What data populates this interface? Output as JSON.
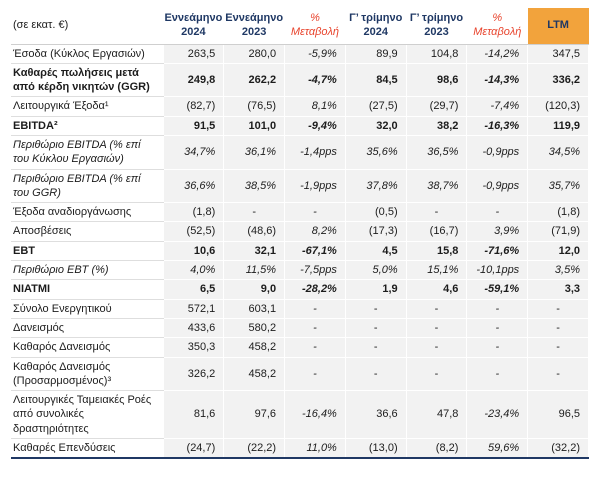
{
  "table": {
    "unit_label": "(σε εκατ. €)",
    "columns": [
      {
        "id": "nine-month-2024",
        "label": "Εννεάμηνο 2024",
        "type": "period"
      },
      {
        "id": "nine-month-2023",
        "label": "Εννεάμηνο 2023",
        "type": "period"
      },
      {
        "id": "change-nine-month",
        "label": "% Μεταβολή",
        "type": "change"
      },
      {
        "id": "q3-2024",
        "label": "Γ’ τρίμηνο 2024",
        "type": "period"
      },
      {
        "id": "q3-2023",
        "label": "Γ’ τρίμηνο 2023",
        "type": "period"
      },
      {
        "id": "change-q3",
        "label": "% Μεταβολή",
        "type": "change"
      },
      {
        "id": "ltm",
        "label": "LTM",
        "type": "ltm"
      }
    ],
    "rows": [
      {
        "label": "Έσοδα (Κύκλος Εργασιών)",
        "style": "normal",
        "values": [
          "263,5",
          "280,0",
          "-5,9%",
          "89,9",
          "104,8",
          "-14,2%",
          "347,5"
        ]
      },
      {
        "label": "Καθαρές πωλήσεις μετά από κέρδη νικητών (GGR)",
        "style": "bold",
        "values": [
          "249,8",
          "262,2",
          "-4,7%",
          "84,5",
          "98,6",
          "-14,3%",
          "336,2"
        ]
      },
      {
        "label": "Λειτουργικά Έξοδα¹",
        "style": "normal",
        "values": [
          "(82,7)",
          "(76,5)",
          "8,1%",
          "(27,5)",
          "(29,7)",
          "-7,4%",
          "(120,3)"
        ]
      },
      {
        "label": "EBITDA²",
        "style": "bold",
        "values": [
          "91,5",
          "101,0",
          "-9,4%",
          "32,0",
          "38,2",
          "-16,3%",
          "119,9"
        ]
      },
      {
        "label": "Περιθώριο EBITDA (% επί του Κύκλου Εργασιών)",
        "style": "italic",
        "values": [
          "34,7%",
          "36,1%",
          "-1,4pps",
          "35,6%",
          "36,5%",
          "-0,9pps",
          "34,5%"
        ]
      },
      {
        "label": "Περιθώριο EBITDA (% επί του GGR)",
        "style": "italic",
        "values": [
          "36,6%",
          "38,5%",
          "-1,9pps",
          "37,8%",
          "38,7%",
          "-0,9pps",
          "35,7%"
        ]
      },
      {
        "label": "Έξοδα αναδιοργάνωσης",
        "style": "normal",
        "values": [
          "(1,8)",
          "-",
          "-",
          "(0,5)",
          "-",
          "-",
          "(1,8)"
        ]
      },
      {
        "label": "Αποσβέσεις",
        "style": "normal",
        "values": [
          "(52,5)",
          "(48,6)",
          "8,2%",
          "(17,3)",
          "(16,7)",
          "3,9%",
          "(71,9)"
        ]
      },
      {
        "label": "EBT",
        "style": "bold",
        "values": [
          "10,6",
          "32,1",
          "-67,1%",
          "4,5",
          "15,8",
          "-71,6%",
          "12,0"
        ]
      },
      {
        "label": "Περιθώριο EBT (%)",
        "style": "italic",
        "values": [
          "4,0%",
          "11,5%",
          "-7,5pps",
          "5,0%",
          "15,1%",
          "-10,1pps",
          "3,5%"
        ]
      },
      {
        "label": "NIATMI",
        "style": "bold",
        "values": [
          "6,5",
          "9,0",
          "-28,2%",
          "1,9",
          "4,6",
          "-59,1%",
          "3,3"
        ]
      },
      {
        "label": "Σύνολο Ενεργητικού",
        "style": "normal",
        "values": [
          "572,1",
          "603,1",
          "-",
          "-",
          "-",
          "-",
          "-"
        ]
      },
      {
        "label": "Δανεισμός",
        "style": "normal",
        "values": [
          "433,6",
          "580,2",
          "-",
          "-",
          "-",
          "-",
          "-"
        ]
      },
      {
        "label": "Καθαρός Δανεισμός",
        "style": "normal",
        "values": [
          "350,3",
          "458,2",
          "-",
          "-",
          "-",
          "-",
          "-"
        ]
      },
      {
        "label": "Καθαρός Δανεισμός (Προσαρμοσμένος)³",
        "style": "normal",
        "values": [
          "326,2",
          "458,2",
          "-",
          "-",
          "-",
          "-",
          "-"
        ]
      },
      {
        "label": "Λειτουργικές Ταμειακές Ροές από συνολικές δραστηριότητες",
        "style": "normal",
        "values": [
          "81,6",
          "97,6",
          "-16,4%",
          "36,6",
          "47,8",
          "-23,4%",
          "96,5"
        ]
      },
      {
        "label": "Καθαρές Επενδύσεις",
        "style": "normal",
        "values": [
          "(24,7)",
          "(22,2)",
          "11,0%",
          "(13,0)",
          "(8,2)",
          "59,6%",
          "(32,2)"
        ]
      }
    ]
  },
  "colors": {
    "header_navy": "#1f3864",
    "change_red": "#e8432c",
    "ltm_orange": "#f2a33c",
    "cell_gray": "#f2f2f2",
    "bottom_border_navy": "#1f3864"
  }
}
